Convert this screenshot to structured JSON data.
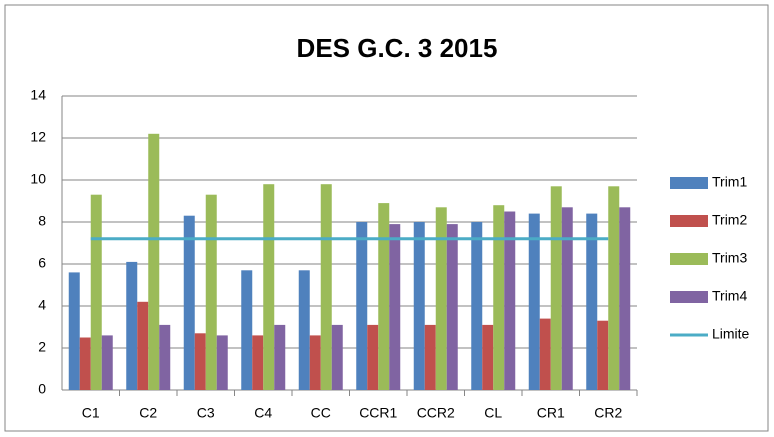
{
  "chart_data": {
    "type": "bar",
    "title": "DES G.C. 3 2015",
    "categories": [
      "C1",
      "C2",
      "C3",
      "C4",
      "CC",
      "CCR1",
      "CCR2",
      "CL",
      "CR1",
      "CR2"
    ],
    "series": [
      {
        "name": "Trim1",
        "color": "#4f81bd",
        "values": [
          5.6,
          6.1,
          8.3,
          5.7,
          5.7,
          8.0,
          8.0,
          8.0,
          8.4,
          8.4
        ]
      },
      {
        "name": "Trim2",
        "color": "#c0504d",
        "values": [
          2.5,
          4.2,
          2.7,
          2.6,
          2.6,
          3.1,
          3.1,
          3.1,
          3.4,
          3.3
        ]
      },
      {
        "name": "Trim3",
        "color": "#9bbb59",
        "values": [
          9.3,
          12.2,
          9.3,
          9.8,
          9.8,
          8.9,
          8.7,
          8.8,
          9.7,
          9.7
        ]
      },
      {
        "name": "Trim4",
        "color": "#8064a2",
        "values": [
          2.6,
          3.1,
          2.6,
          3.1,
          3.1,
          7.9,
          7.9,
          8.5,
          8.7,
          8.7
        ]
      },
      {
        "name": "Limite",
        "color": "#4bacc6",
        "type": "line",
        "values": [
          7.2,
          7.2,
          7.2,
          7.2,
          7.2,
          7.2,
          7.2,
          7.2,
          7.2,
          7.2
        ]
      }
    ],
    "ylim": [
      0,
      14
    ],
    "yticks": [
      0,
      2,
      4,
      6,
      8,
      10,
      12,
      14
    ],
    "grid": true,
    "legend": "right"
  }
}
